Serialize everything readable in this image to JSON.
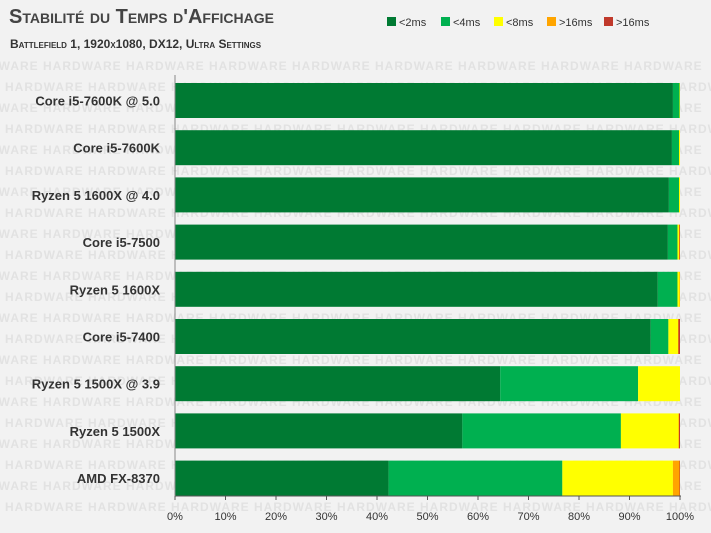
{
  "chart_data": {
    "type": "bar",
    "stacked": true,
    "orientation": "horizontal",
    "title": "Stabilité du Temps d'Affichage",
    "subtitle": "Battlefield 1, 1920x1080,   DX12, Ultra Settings",
    "watermark": "HARDWARE",
    "categories": [
      "Core i5-7600K @ 5.0",
      "Core i5-7600K",
      "Ryzen 5 1600X @ 4.0",
      "Core i5-7500",
      "Ryzen 5 1600X",
      "Core i5-7400",
      "Ryzen 5 1500X @ 3.9",
      "Ryzen 5 1500X",
      "AMD FX-8370"
    ],
    "series": [
      {
        "name": "<2ms",
        "color": "#007a33",
        "values": [
          98.6,
          98.4,
          97.8,
          97.6,
          95.6,
          94.2,
          64.4,
          56.9,
          42.3
        ]
      },
      {
        "name": "<4ms",
        "color": "#00b050",
        "values": [
          1.3,
          1.4,
          2.0,
          1.9,
          3.9,
          3.5,
          27.3,
          31.4,
          34.4
        ]
      },
      {
        "name": "<8ms",
        "color": "#ffff00",
        "values": [
          0.1,
          0.2,
          0.2,
          0.3,
          0.4,
          1.9,
          8.3,
          11.4,
          21.9
        ]
      },
      {
        "name": ">16ms",
        "color": "#ffa500",
        "values": [
          0.0,
          0.0,
          0.0,
          0.1,
          0.1,
          0.1,
          0.0,
          0.1,
          1.3
        ]
      },
      {
        "name": ">16ms",
        "color": "#c0392b",
        "values": [
          0.0,
          0.0,
          0.0,
          0.1,
          0.0,
          0.3,
          0.0,
          0.2,
          0.1
        ]
      }
    ],
    "xlim": [
      0,
      100
    ],
    "xticks": [
      "0%",
      "10%",
      "20%",
      "30%",
      "40%",
      "50%",
      "60%",
      "70%",
      "80%",
      "90%",
      "100%"
    ],
    "grid": false,
    "legend_position": "top-right"
  }
}
